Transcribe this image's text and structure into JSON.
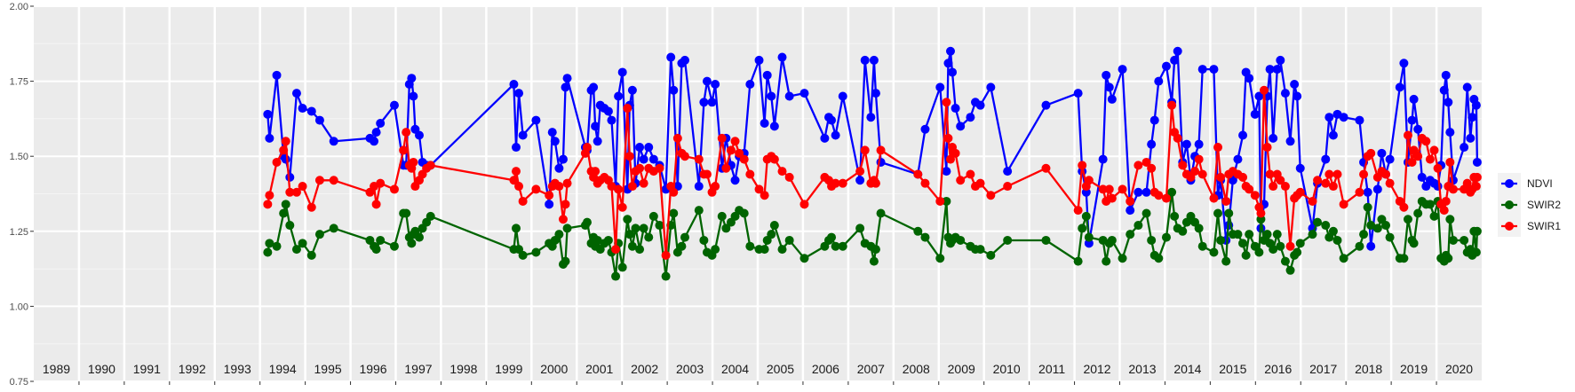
{
  "chart_data": {
    "type": "line",
    "title": "",
    "xlabel": "",
    "ylabel": "",
    "xlim": [
      1989,
      2021
    ],
    "ylim": [
      0.75,
      2.0
    ],
    "y_ticks": [
      "0.75",
      "1.00",
      "1.25",
      "1.50",
      "1.75",
      "2.00"
    ],
    "y_tick_values": [
      0.75,
      1.0,
      1.25,
      1.5,
      1.75,
      2.0
    ],
    "year_labels": [
      "1989",
      "1990",
      "1991",
      "1992",
      "1993",
      "1994",
      "1995",
      "1996",
      "1997",
      "1998",
      "1999",
      "2000",
      "2001",
      "2002",
      "2003",
      "2004",
      "2005",
      "2006",
      "2007",
      "2008",
      "2009",
      "2010",
      "2011",
      "2012",
      "2013",
      "2014",
      "2015",
      "2016",
      "2017",
      "2018",
      "2019",
      "2020"
    ],
    "grid": true,
    "legend_position": "right",
    "x": [
      1994.17,
      1994.21,
      1994.37,
      1994.52,
      1994.57,
      1994.66,
      1994.81,
      1994.94,
      1995.14,
      1995.32,
      1995.63,
      1996.43,
      1996.52,
      1996.57,
      1996.66,
      1996.97,
      1997.17,
      1997.23,
      1997.3,
      1997.35,
      1997.39,
      1997.43,
      1997.52,
      1997.59,
      1997.68,
      1997.77,
      1999.61,
      1999.66,
      1999.72,
      1999.81,
      2000.1,
      2000.39,
      2000.46,
      2000.52,
      2000.61,
      2000.7,
      2000.75,
      2000.79,
      2001.19,
      2001.23,
      2001.32,
      2001.37,
      2001.41,
      2001.46,
      2001.52,
      2001.61,
      2001.7,
      2001.77,
      2001.86,
      2001.92,
      2002.01,
      2002.12,
      2002.17,
      2002.23,
      2002.3,
      2002.39,
      2002.48,
      2002.59,
      2002.7,
      2002.83,
      2002.97,
      2003.08,
      2003.14,
      2003.23,
      2003.32,
      2003.39,
      2003.7,
      2003.81,
      2003.88,
      2003.99,
      2004.06,
      2004.21,
      2004.3,
      2004.41,
      2004.5,
      2004.59,
      2004.7,
      2004.83,
      2005.03,
      2005.15,
      2005.21,
      2005.3,
      2005.37,
      2005.54,
      2005.7,
      2006.03,
      2006.48,
      2006.57,
      2006.63,
      2006.72,
      2006.88,
      2007.26,
      2007.37,
      2007.5,
      2007.57,
      2007.61,
      2007.72,
      2008.54,
      2008.7,
      2009.03,
      2009.17,
      2009.21,
      2009.26,
      2009.3,
      2009.37,
      2009.48,
      2009.7,
      2009.81,
      2009.92,
      2010.15,
      2010.52,
      2011.37,
      2012.08,
      2012.17,
      2012.26,
      2012.32,
      2012.63,
      2012.7,
      2012.77,
      2012.83,
      2013.06,
      2013.23,
      2013.41,
      2013.59,
      2013.7,
      2013.77,
      2013.86,
      2014.03,
      2014.15,
      2014.21,
      2014.28,
      2014.39,
      2014.48,
      2014.57,
      2014.66,
      2014.75,
      2014.83,
      2015.08,
      2015.17,
      2015.23,
      2015.35,
      2015.41,
      2015.5,
      2015.61,
      2015.72,
      2015.79,
      2015.86,
      2015.99,
      2016.08,
      2016.12,
      2016.19,
      2016.26,
      2016.32,
      2016.39,
      2016.48,
      2016.55,
      2016.66,
      2016.77,
      2016.86,
      2016.92,
      2016.99,
      2017.26,
      2017.37,
      2017.55,
      2017.63,
      2017.72,
      2017.81,
      2017.95,
      2018.3,
      2018.39,
      2018.48,
      2018.55,
      2018.7,
      2018.79,
      2018.88,
      2018.97,
      2019.19,
      2019.28,
      2019.37,
      2019.46,
      2019.5,
      2019.59,
      2019.68,
      2019.77,
      2019.86,
      2019.95,
      2020.03,
      2020.1,
      2020.17,
      2020.21,
      2020.26,
      2020.3,
      2020.37,
      2020.61,
      2020.68,
      2020.75,
      2020.79,
      2020.83,
      2020.88,
      2020.9
    ],
    "series": [
      {
        "name": "NDVI",
        "color": "#0000ff",
        "values": [
          1.64,
          1.56,
          1.77,
          1.5,
          1.49,
          1.43,
          1.71,
          1.66,
          1.65,
          1.62,
          1.55,
          1.56,
          1.55,
          1.58,
          1.61,
          1.67,
          1.47,
          1.47,
          1.74,
          1.76,
          1.7,
          1.59,
          1.57,
          1.48,
          1.47,
          1.47,
          1.74,
          1.53,
          1.71,
          1.57,
          1.62,
          1.34,
          1.58,
          1.55,
          1.46,
          1.49,
          1.73,
          1.76,
          1.53,
          1.52,
          1.72,
          1.73,
          1.6,
          1.55,
          1.67,
          1.66,
          1.65,
          1.62,
          1.4,
          1.7,
          1.78,
          1.39,
          1.67,
          1.72,
          1.41,
          1.53,
          1.49,
          1.53,
          1.49,
          1.47,
          1.39,
          1.83,
          1.72,
          1.4,
          1.81,
          1.82,
          1.4,
          1.68,
          1.75,
          1.68,
          1.74,
          1.46,
          1.56,
          1.47,
          1.42,
          1.5,
          1.51,
          1.74,
          1.82,
          1.61,
          1.77,
          1.7,
          1.6,
          1.83,
          1.7,
          1.71,
          1.56,
          1.63,
          1.62,
          1.57,
          1.7,
          1.42,
          1.82,
          1.63,
          1.82,
          1.71,
          1.48,
          1.44,
          1.59,
          1.73,
          1.45,
          1.81,
          1.85,
          1.78,
          1.66,
          1.6,
          1.63,
          1.68,
          1.67,
          1.73,
          1.45,
          1.67,
          1.71,
          1.45,
          1.38,
          1.21,
          1.49,
          1.77,
          1.73,
          1.69,
          1.79,
          1.32,
          1.38,
          1.38,
          1.54,
          1.62,
          1.75,
          1.8,
          1.68,
          1.82,
          1.85,
          1.48,
          1.54,
          1.42,
          1.5,
          1.54,
          1.79,
          1.79,
          1.37,
          1.42,
          1.22,
          1.27,
          1.42,
          1.49,
          1.57,
          1.78,
          1.76,
          1.64,
          1.7,
          1.26,
          1.34,
          1.7,
          1.79,
          1.56,
          1.79,
          1.82,
          1.71,
          1.55,
          1.74,
          1.7,
          1.46,
          1.26,
          1.41,
          1.49,
          1.63,
          1.57,
          1.64,
          1.63,
          1.62,
          1.48,
          1.38,
          1.2,
          1.39,
          1.51,
          1.44,
          1.49,
          1.73,
          1.81,
          1.48,
          1.62,
          1.69,
          1.59,
          1.43,
          1.4,
          1.42,
          1.41,
          1.4,
          1.47,
          1.72,
          1.77,
          1.68,
          1.58,
          1.42,
          1.53,
          1.73,
          1.56,
          1.63,
          1.69,
          1.67,
          1.48
        ]
      },
      {
        "name": "SWIR2",
        "color": "#006400",
        "values": [
          1.18,
          1.21,
          1.2,
          1.31,
          1.34,
          1.27,
          1.19,
          1.21,
          1.17,
          1.24,
          1.26,
          1.22,
          1.2,
          1.19,
          1.22,
          1.2,
          1.31,
          1.31,
          1.23,
          1.21,
          1.24,
          1.25,
          1.23,
          1.26,
          1.28,
          1.3,
          1.19,
          1.26,
          1.19,
          1.17,
          1.18,
          1.21,
          1.2,
          1.22,
          1.24,
          1.14,
          1.15,
          1.26,
          1.27,
          1.28,
          1.21,
          1.23,
          1.2,
          1.22,
          1.19,
          1.21,
          1.22,
          1.18,
          1.1,
          1.21,
          1.13,
          1.29,
          1.24,
          1.2,
          1.26,
          1.19,
          1.26,
          1.23,
          1.3,
          1.27,
          1.1,
          1.27,
          1.31,
          1.18,
          1.2,
          1.23,
          1.32,
          1.22,
          1.18,
          1.17,
          1.19,
          1.3,
          1.26,
          1.28,
          1.3,
          1.32,
          1.31,
          1.2,
          1.19,
          1.19,
          1.22,
          1.24,
          1.27,
          1.19,
          1.22,
          1.16,
          1.2,
          1.22,
          1.23,
          1.2,
          1.2,
          1.26,
          1.21,
          1.2,
          1.15,
          1.19,
          1.31,
          1.25,
          1.23,
          1.16,
          1.35,
          1.23,
          1.21,
          1.22,
          1.23,
          1.22,
          1.2,
          1.19,
          1.19,
          1.17,
          1.22,
          1.22,
          1.15,
          1.26,
          1.3,
          1.23,
          1.22,
          1.15,
          1.21,
          1.22,
          1.16,
          1.24,
          1.27,
          1.31,
          1.22,
          1.17,
          1.16,
          1.23,
          1.38,
          1.3,
          1.26,
          1.25,
          1.28,
          1.3,
          1.28,
          1.26,
          1.2,
          1.18,
          1.31,
          1.22,
          1.15,
          1.31,
          1.24,
          1.24,
          1.21,
          1.17,
          1.24,
          1.2,
          1.18,
          1.29,
          1.22,
          1.24,
          1.21,
          1.19,
          1.24,
          1.2,
          1.15,
          1.12,
          1.17,
          1.18,
          1.21,
          1.24,
          1.28,
          1.27,
          1.23,
          1.25,
          1.22,
          1.16,
          1.2,
          1.24,
          1.33,
          1.27,
          1.26,
          1.29,
          1.27,
          1.23,
          1.16,
          1.16,
          1.29,
          1.22,
          1.21,
          1.31,
          1.35,
          1.34,
          1.34,
          1.3,
          1.35,
          1.16,
          1.15,
          1.17,
          1.16,
          1.29,
          1.22,
          1.22,
          1.18,
          1.19,
          1.17,
          1.25,
          1.18,
          1.25
        ]
      },
      {
        "name": "SWIR1",
        "color": "#ff0000",
        "values": [
          1.34,
          1.37,
          1.48,
          1.52,
          1.55,
          1.38,
          1.38,
          1.4,
          1.33,
          1.42,
          1.42,
          1.38,
          1.4,
          1.34,
          1.41,
          1.39,
          1.52,
          1.58,
          1.47,
          1.46,
          1.48,
          1.4,
          1.42,
          1.44,
          1.46,
          1.47,
          1.42,
          1.45,
          1.4,
          1.35,
          1.39,
          1.37,
          1.4,
          1.41,
          1.4,
          1.29,
          1.34,
          1.41,
          1.51,
          1.53,
          1.45,
          1.43,
          1.45,
          1.41,
          1.42,
          1.43,
          1.42,
          1.4,
          1.19,
          1.39,
          1.33,
          1.66,
          1.5,
          1.4,
          1.45,
          1.46,
          1.41,
          1.46,
          1.45,
          1.46,
          1.17,
          1.4,
          1.38,
          1.56,
          1.51,
          1.5,
          1.49,
          1.44,
          1.44,
          1.38,
          1.4,
          1.56,
          1.46,
          1.52,
          1.55,
          1.51,
          1.49,
          1.44,
          1.39,
          1.37,
          1.49,
          1.5,
          1.49,
          1.45,
          1.43,
          1.34,
          1.43,
          1.42,
          1.4,
          1.41,
          1.41,
          1.45,
          1.52,
          1.41,
          1.42,
          1.41,
          1.52,
          1.44,
          1.41,
          1.35,
          1.68,
          1.56,
          1.49,
          1.53,
          1.51,
          1.42,
          1.44,
          1.4,
          1.41,
          1.37,
          1.4,
          1.46,
          1.32,
          1.47,
          1.4,
          1.42,
          1.39,
          1.35,
          1.39,
          1.36,
          1.39,
          1.35,
          1.47,
          1.48,
          1.46,
          1.38,
          1.37,
          1.36,
          1.67,
          1.58,
          1.56,
          1.47,
          1.44,
          1.43,
          1.45,
          1.49,
          1.44,
          1.36,
          1.53,
          1.43,
          1.35,
          1.44,
          1.45,
          1.44,
          1.43,
          1.4,
          1.39,
          1.37,
          1.33,
          1.31,
          1.72,
          1.53,
          1.44,
          1.4,
          1.44,
          1.42,
          1.4,
          1.2,
          1.36,
          1.37,
          1.38,
          1.35,
          1.42,
          1.41,
          1.44,
          1.4,
          1.44,
          1.34,
          1.38,
          1.44,
          1.5,
          1.51,
          1.43,
          1.45,
          1.44,
          1.41,
          1.35,
          1.33,
          1.57,
          1.48,
          1.52,
          1.5,
          1.56,
          1.55,
          1.49,
          1.52,
          1.46,
          1.34,
          1.32,
          1.35,
          1.4,
          1.48,
          1.39,
          1.39,
          1.41,
          1.38,
          1.39,
          1.43,
          1.4,
          1.43
        ]
      }
    ]
  }
}
